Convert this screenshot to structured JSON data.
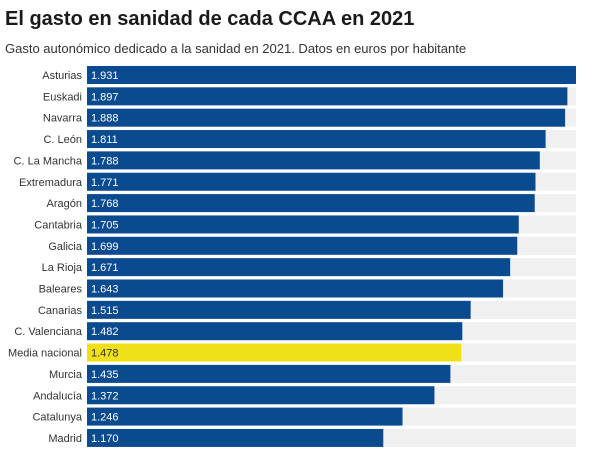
{
  "chart_data": {
    "type": "bar",
    "orientation": "horizontal",
    "title": "El gasto en sanidad de cada CCAA en 2021",
    "subtitle": "Gasto autonómico dedicado a la sanidad en 2021. Datos en euros por habitante",
    "xlim": [
      0,
      1931
    ],
    "grid": false,
    "categories": [
      "Asturias",
      "Euskadi",
      "Navarra",
      "C. León",
      "C. La Mancha",
      "Extremadura",
      "Aragón",
      "Cantabria",
      "Galicia",
      "La Rioja",
      "Baleares",
      "Canarias",
      "C. Valenciana",
      "Media nacional",
      "Murcia",
      "Andalucía",
      "Catalunya",
      "Madrid"
    ],
    "values": [
      1931,
      1897,
      1888,
      1811,
      1788,
      1771,
      1768,
      1705,
      1699,
      1671,
      1643,
      1515,
      1482,
      1478,
      1435,
      1372,
      1246,
      1170
    ],
    "value_labels": [
      "1.931",
      "1.897",
      "1.888",
      "1.811",
      "1.788",
      "1.771",
      "1.768",
      "1.705",
      "1.699",
      "1.671",
      "1.643",
      "1.515",
      "1.482",
      "1.478",
      "1.435",
      "1.372",
      "1.246",
      "1.170"
    ],
    "highlight_category": "Media nacional",
    "colors": {
      "bar": "#0a4a8f",
      "highlight": "#f0e01a",
      "track": "#f0f0f0",
      "label_on_bar": "#ffffff",
      "label_on_highlight": "#333333"
    }
  }
}
